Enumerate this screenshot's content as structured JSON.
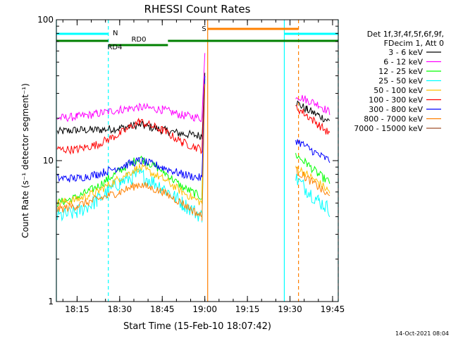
{
  "chart_data": {
    "type": "line",
    "title": "RHESSI Count Rates",
    "xlabel": "Start Time (15-Feb-10 18:07:42)",
    "ylabel": "Count Rate (s⁻¹ detector segment⁻¹)",
    "x_unit": "time of day (HH:MM)",
    "xlim": [
      "18:07:42",
      "19:47:00"
    ],
    "ylim": [
      1,
      100
    ],
    "yscale": "log",
    "x_ticks": [
      "18:15",
      "18:30",
      "18:45",
      "19:00",
      "19:15",
      "19:30",
      "19:45"
    ],
    "y_ticks": [
      "1",
      "10",
      "100"
    ],
    "legend_header": [
      "Det 1f,3f,4f,5f,6f,9f,",
      "FDecim 1, Att 0"
    ],
    "legend_position": "right, outside plot",
    "timestamp": "14-Oct-2021 08:04",
    "data_gap": [
      "19:00",
      "19:32"
    ],
    "series": [
      {
        "name": "3 - 6 keV",
        "color": "#000000",
        "x": [
          "18:08",
          "18:15",
          "18:22",
          "18:30",
          "18:37",
          "18:45",
          "18:52",
          "18:59",
          "19:00",
          "19:32",
          "19:36",
          "19:40",
          "19:44"
        ],
        "values": [
          16,
          16.5,
          16.5,
          17,
          18,
          16.5,
          15.5,
          15,
          42,
          26,
          23,
          21,
          19
        ]
      },
      {
        "name": "6 - 12 keV",
        "color": "#ff00ff",
        "x": [
          "18:08",
          "18:15",
          "18:22",
          "18:30",
          "18:37",
          "18:45",
          "18:52",
          "18:59",
          "19:00",
          "19:32",
          "19:36",
          "19:40",
          "19:44"
        ],
        "values": [
          20,
          20.5,
          21.5,
          23,
          24,
          23,
          21,
          20,
          58,
          29,
          27,
          25,
          22
        ]
      },
      {
        "name": "12 - 25 keV",
        "color": "#00ff00",
        "x": [
          "18:08",
          "18:15",
          "18:22",
          "18:30",
          "18:37",
          "18:45",
          "18:52",
          "18:59",
          "19:00",
          "19:32",
          "19:36",
          "19:40",
          "19:44"
        ],
        "values": [
          5,
          5.5,
          6.5,
          8.5,
          10.5,
          8.5,
          6.5,
          5.5,
          38,
          11,
          9.5,
          8,
          7
        ]
      },
      {
        "name": "25 - 50 keV",
        "color": "#00ffff",
        "x": [
          "18:08",
          "18:15",
          "18:22",
          "18:30",
          "18:37",
          "18:45",
          "18:52",
          "18:59",
          "19:00",
          "19:32",
          "19:36",
          "19:40",
          "19:44"
        ],
        "values": [
          4,
          4.3,
          5.2,
          7,
          8,
          6.5,
          5,
          4,
          36,
          7.5,
          6.2,
          5.2,
          4.5
        ]
      },
      {
        "name": "50 - 100 keV",
        "color": "#ffbf00",
        "x": [
          "18:08",
          "18:15",
          "18:22",
          "18:30",
          "18:37",
          "18:45",
          "18:52",
          "18:59",
          "19:00",
          "19:32",
          "19:36",
          "19:40",
          "19:44"
        ],
        "values": [
          5,
          5.3,
          6,
          7.5,
          9,
          7.5,
          6,
          5,
          38,
          9,
          8,
          7,
          6
        ]
      },
      {
        "name": "100 - 300 keV",
        "color": "#ff0000",
        "x": [
          "18:08",
          "18:15",
          "18:22",
          "18:30",
          "18:37",
          "18:45",
          "18:52",
          "18:59",
          "19:00",
          "19:32",
          "19:36",
          "19:40",
          "19:44"
        ],
        "values": [
          12,
          12,
          13,
          15.5,
          19,
          16.5,
          13.5,
          12,
          40,
          24,
          21,
          18,
          15.5
        ]
      },
      {
        "name": "300 - 800 keV",
        "color": "#0000ff",
        "x": [
          "18:08",
          "18:15",
          "18:22",
          "18:30",
          "18:37",
          "18:45",
          "18:52",
          "18:59",
          "19:00",
          "19:32",
          "19:36",
          "19:40",
          "19:44"
        ],
        "values": [
          7.5,
          7.5,
          8,
          9,
          10,
          9,
          8,
          7.5,
          40,
          14,
          12.5,
          11,
          10
        ]
      },
      {
        "name": "800 - 7000 keV",
        "color": "#ff8000",
        "x": [
          "18:08",
          "18:15",
          "18:22",
          "18:30",
          "18:37",
          "18:45",
          "18:52",
          "18:59",
          "19:00",
          "19:32",
          "19:36",
          "19:40",
          "19:44"
        ],
        "values": [
          4.5,
          4.8,
          5.3,
          6,
          6.8,
          6,
          5,
          4,
          35,
          8.5,
          7.5,
          6.5,
          5.5
        ]
      },
      {
        "name": "7000 - 15000 keV",
        "color": "#a0522d",
        "x": [],
        "values": []
      }
    ],
    "attenuator_bars": [
      {
        "label": "N",
        "color": "#00ffff",
        "segments": [
          [
            "18:07:42",
            "18:26"
          ],
          [
            "19:28",
            "19:47"
          ]
        ]
      },
      {
        "label": "S",
        "color": "#ff8000",
        "segments": [
          [
            "19:01",
            "19:33"
          ]
        ]
      }
    ],
    "rate_state_bars": [
      {
        "label": "RD0",
        "color": "#008000",
        "segments": [
          [
            "18:07:42",
            "18:26"
          ],
          [
            "18:47",
            "19:47"
          ]
        ]
      },
      {
        "label": "RD4",
        "color": "#008000",
        "segments": [
          [
            "18:26",
            "18:47"
          ]
        ]
      }
    ],
    "vertical_markers": [
      {
        "time": "18:07:42",
        "color": "#00ffff",
        "style": "solid"
      },
      {
        "time": "18:26",
        "color": "#00ffff",
        "style": "dashed"
      },
      {
        "time": "19:01",
        "color": "#ff8000",
        "style": "solid"
      },
      {
        "time": "19:28",
        "color": "#00ffff",
        "style": "solid"
      },
      {
        "time": "19:33",
        "color": "#ff8000",
        "style": "dashed"
      },
      {
        "time": "19:47",
        "color": "#00ffff",
        "style": "dashed"
      }
    ]
  }
}
